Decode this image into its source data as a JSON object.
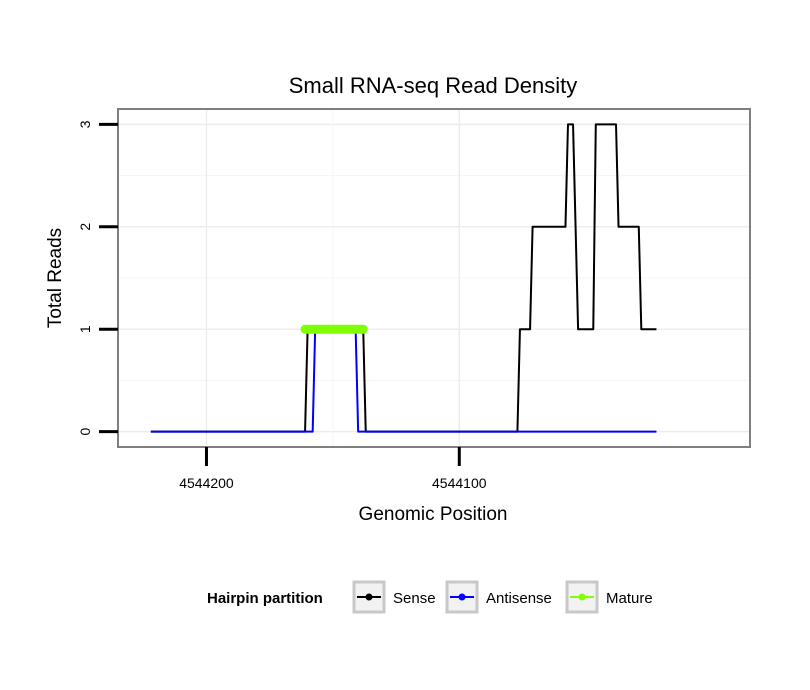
{
  "chart_data": {
    "type": "line",
    "title": "Small RNA-seq Read Density",
    "xlabel": "Genomic Position",
    "ylabel": "Total Reads",
    "x_reversed": true,
    "xlim": [
      4544235,
      4543985
    ],
    "ylim": [
      -0.15,
      3.15
    ],
    "x_ticks": [
      {
        "value": 4544200,
        "label": "4544200"
      },
      {
        "value": 4544100,
        "label": "4544100"
      }
    ],
    "y_ticks": [
      {
        "value": 0,
        "label": "0"
      },
      {
        "value": 1,
        "label": "1"
      },
      {
        "value": 2,
        "label": "2"
      },
      {
        "value": 3,
        "label": "3"
      }
    ],
    "grid": true,
    "legend": {
      "title": "Hairpin partition",
      "position": "bottom",
      "entries": [
        {
          "label": "Sense",
          "color": "#000000"
        },
        {
          "label": "Antisense",
          "color": "#0000ff"
        },
        {
          "label": "Mature",
          "color": "#7fff00"
        }
      ]
    },
    "series": [
      {
        "name": "Sense",
        "color": "#000000",
        "x": [
          4544222,
          4544161,
          4544160,
          4544138,
          4544137,
          4544077,
          4544076,
          4544072,
          4544071,
          4544066,
          4544065,
          4544058,
          4544057,
          4544055,
          4544054,
          4544053,
          4544052,
          4544047,
          4544046,
          4544044,
          4544043,
          4544038,
          4544037,
          4544029,
          4544028,
          4544022
        ],
        "y": [
          0,
          0,
          1,
          1,
          0,
          0,
          1,
          1,
          2,
          2,
          2,
          2,
          3,
          3,
          2,
          1,
          1,
          1,
          3,
          3,
          3,
          3,
          2,
          2,
          1,
          1
        ]
      },
      {
        "name": "Antisense",
        "color": "#0000ff",
        "x": [
          4544222,
          4544158,
          4544157,
          4544141,
          4544140,
          4544022
        ],
        "y": [
          0,
          0,
          1,
          1,
          0,
          0
        ]
      },
      {
        "name": "Mature",
        "color": "#7fff00",
        "x": [
          4544161,
          4544138
        ],
        "y": [
          1,
          1
        ]
      }
    ]
  }
}
